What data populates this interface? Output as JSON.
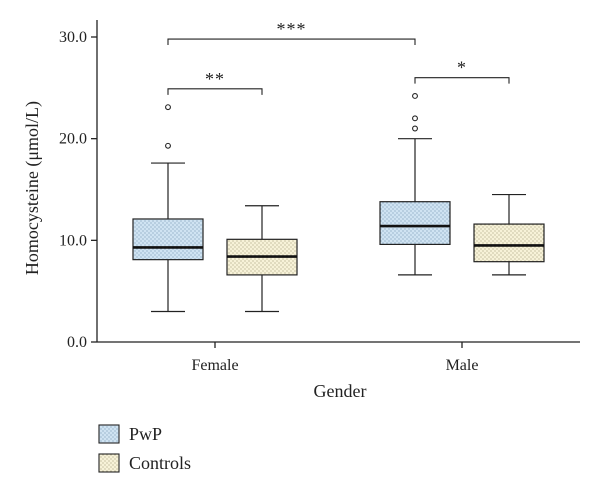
{
  "chart_data": {
    "type": "box",
    "xlabel": "Gender",
    "ylabel": "Homocysteine (μmol/L)",
    "ylim": [
      0,
      30
    ],
    "yticks": [
      0,
      10,
      20,
      30
    ],
    "ytick_labels": [
      "0.0",
      "10.0",
      "20.0",
      "30.0"
    ],
    "categories": [
      "Female",
      "Male"
    ],
    "legend_position": "bottom-left",
    "series": [
      {
        "name": "PwP",
        "color": "#cfe3f2",
        "boxes": [
          {
            "category": "Female",
            "whisker_low": 3.0,
            "q1": 8.1,
            "median": 9.3,
            "q3": 12.1,
            "whisker_high": 17.6,
            "outliers": [
              19.3,
              23.1
            ]
          },
          {
            "category": "Male",
            "whisker_low": 6.6,
            "q1": 9.6,
            "median": 11.4,
            "q3": 13.8,
            "whisker_high": 20.0,
            "outliers": [
              21.0,
              22.0,
              24.2
            ]
          }
        ]
      },
      {
        "name": "Controls",
        "color": "#f7f2d8",
        "boxes": [
          {
            "category": "Female",
            "whisker_low": 3.0,
            "q1": 6.6,
            "median": 8.4,
            "q3": 10.1,
            "whisker_high": 13.4,
            "outliers": []
          },
          {
            "category": "Male",
            "whisker_low": 6.6,
            "q1": 7.9,
            "median": 9.5,
            "q3": 11.6,
            "whisker_high": 14.5,
            "outliers": []
          }
        ]
      }
    ],
    "significance": [
      {
        "label": "**",
        "from": "Female PwP",
        "to": "Female Controls",
        "y": 24.9
      },
      {
        "label": "*",
        "from": "Male PwP",
        "to": "Male Controls",
        "y": 26.0
      },
      {
        "label": "***",
        "from": "Female PwP",
        "to": "Male PwP",
        "y": 29.8
      }
    ]
  }
}
